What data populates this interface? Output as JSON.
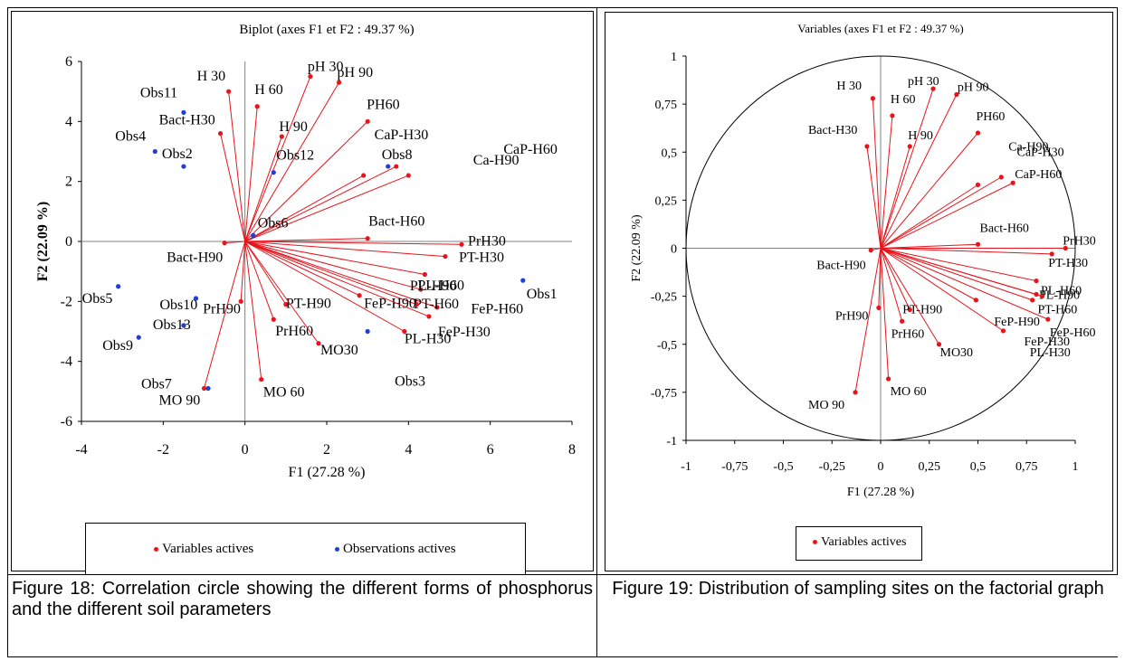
{
  "colors": {
    "variable": "#e8141b",
    "observation": "#1f3fd6",
    "axis": "#000000",
    "origin_line": "#808080"
  },
  "captions": {
    "left": "Figure 18: Correlation circle showing the different forms of phosphorus and the different soil parameters",
    "right": "Figure 19: Distribution of sampling sites on the factorial graph"
  },
  "chart_data": [
    {
      "type": "scatter",
      "subtype": "biplot",
      "title": "Biplot (axes F1 et F2 : 49.37 %)",
      "xlabel": "F1 (27.28 %)",
      "ylabel": "F2 (22.09 %)",
      "xlim": [
        -4,
        8
      ],
      "ylim": [
        -6,
        6
      ],
      "xticks": [
        "-4",
        "-2",
        "0",
        "2",
        "4",
        "6",
        "8"
      ],
      "yticks": [
        "-6",
        "-4",
        "-2",
        "0",
        "2",
        "4",
        "6"
      ],
      "legend": {
        "position": "bottom",
        "entries": [
          "Variables actives",
          "Observations actives"
        ]
      },
      "series": [
        {
          "name": "Variables actives",
          "points": [
            {
              "label": "H 30",
              "x": -0.4,
              "y": 5.0
            },
            {
              "label": "pH 30",
              "x": 1.6,
              "y": 5.5
            },
            {
              "label": "pH 90",
              "x": 2.3,
              "y": 5.3
            },
            {
              "label": "H 60",
              "x": 0.3,
              "y": 4.5
            },
            {
              "label": "Bact-H30",
              "x": -0.6,
              "y": 3.6
            },
            {
              "label": "H 90",
              "x": 0.9,
              "y": 3.5
            },
            {
              "label": "PH60",
              "x": 3.0,
              "y": 4.0
            },
            {
              "label": "Ca-H90",
              "x": 3.7,
              "y": 2.5
            },
            {
              "label": "CaP-H60",
              "x": 4.0,
              "y": 2.2
            },
            {
              "label": "CaP-H30",
              "x": 2.9,
              "y": 2.2
            },
            {
              "label": "Bact-H60",
              "x": 3.0,
              "y": 0.1
            },
            {
              "label": "PrH30",
              "x": 5.3,
              "y": -0.1
            },
            {
              "label": "PT-H30",
              "x": 4.9,
              "y": -0.5
            },
            {
              "label": "PL-H60",
              "x": 4.4,
              "y": -1.1
            },
            {
              "label": "PL-H90",
              "x": 4.3,
              "y": -1.6
            },
            {
              "label": "PT-H60",
              "x": 4.7,
              "y": -2.2
            },
            {
              "label": "FeP-H60",
              "x": 4.2,
              "y": -2.1
            },
            {
              "label": "FeP-H90",
              "x": 2.8,
              "y": -1.8
            },
            {
              "label": "FeP-H30",
              "x": 4.5,
              "y": -2.5
            },
            {
              "label": "PL-H30",
              "x": 3.9,
              "y": -3.0
            },
            {
              "label": "Bact-H90",
              "x": -0.5,
              "y": -0.05
            },
            {
              "label": "PT-H90",
              "x": 1.0,
              "y": -2.1
            },
            {
              "label": "PrH60",
              "x": 0.7,
              "y": -2.6
            },
            {
              "label": "MO30",
              "x": 1.8,
              "y": -3.4
            },
            {
              "label": "PrH90",
              "x": -0.1,
              "y": -2.0
            },
            {
              "label": "MO 60",
              "x": 0.4,
              "y": -4.6
            },
            {
              "label": "MO 90",
              "x": -1.0,
              "y": -4.9
            }
          ]
        },
        {
          "name": "Observations actives",
          "points": [
            {
              "label": "Obs11",
              "x": -1.5,
              "y": 4.3
            },
            {
              "label": "Obs4",
              "x": -2.2,
              "y": 3.0
            },
            {
              "label": "Obs2",
              "x": -1.5,
              "y": 2.5
            },
            {
              "label": "Obs12",
              "x": 0.7,
              "y": 2.3
            },
            {
              "label": "Obs8",
              "x": 3.5,
              "y": 2.5
            },
            {
              "label": "Obs6",
              "x": 0.2,
              "y": 0.2
            },
            {
              "label": "Obs1",
              "x": 6.8,
              "y": -1.3
            },
            {
              "label": "Obs5",
              "x": -3.1,
              "y": -1.5
            },
            {
              "label": "Obs10",
              "x": -1.2,
              "y": -1.9
            },
            {
              "label": "Obs13",
              "x": -1.5,
              "y": -2.8
            },
            {
              "label": "Obs9",
              "x": -2.6,
              "y": -3.2
            },
            {
              "label": "Obs7",
              "x": -0.9,
              "y": -4.9
            },
            {
              "label": "Obs3",
              "x": 3.0,
              "y": -3.0
            }
          ]
        }
      ]
    },
    {
      "type": "scatter",
      "subtype": "correlation-circle",
      "title": "Variables (axes F1 et F2 : 49.37 %)",
      "xlabel": "F1 (27.28 %)",
      "ylabel": "F2 (22.09 %)",
      "xlim": [
        -1,
        1
      ],
      "ylim": [
        -1,
        1
      ],
      "xticks": [
        "-1",
        "-0,75",
        "-0,5",
        "-0,25",
        "0",
        "0,25",
        "0,5",
        "0,75",
        "1"
      ],
      "yticks": [
        "-1",
        "-0,75",
        "-0,5",
        "-0,25",
        "0",
        "0,25",
        "0,5",
        "0,75",
        "1"
      ],
      "legend": {
        "position": "bottom",
        "entries": [
          "Variables actives"
        ]
      },
      "series": [
        {
          "name": "Variables actives",
          "points": [
            {
              "label": "H 30",
              "x": -0.04,
              "y": 0.78
            },
            {
              "label": "pH 30",
              "x": 0.27,
              "y": 0.83
            },
            {
              "label": "pH 90",
              "x": 0.39,
              "y": 0.8
            },
            {
              "label": "H 60",
              "x": 0.06,
              "y": 0.69
            },
            {
              "label": "Bact-H30",
              "x": -0.07,
              "y": 0.53
            },
            {
              "label": "H 90",
              "x": 0.15,
              "y": 0.53
            },
            {
              "label": "PH60",
              "x": 0.5,
              "y": 0.6
            },
            {
              "label": "Ca-H90",
              "x": 0.68,
              "y": 0.34
            },
            {
              "label": "CaP-H60",
              "x": 0.62,
              "y": 0.37
            },
            {
              "label": "CaP-H30",
              "x": 0.5,
              "y": 0.33
            },
            {
              "label": "Bact-H60",
              "x": 0.5,
              "y": 0.02
            },
            {
              "label": "PrH30",
              "x": 0.95,
              "y": 0.0
            },
            {
              "label": "PT-H30",
              "x": 0.88,
              "y": -0.03
            },
            {
              "label": "PL-H60",
              "x": 0.8,
              "y": -0.17
            },
            {
              "label": "PL-H90",
              "x": 0.8,
              "y": -0.24
            },
            {
              "label": "PT-H60",
              "x": 0.83,
              "y": -0.25
            },
            {
              "label": "FeP-H60",
              "x": 0.86,
              "y": -0.37
            },
            {
              "label": "FeP-H30",
              "x": 0.63,
              "y": -0.43
            },
            {
              "label": "FeP-H90",
              "x": 0.49,
              "y": -0.27
            },
            {
              "label": "PL-H30",
              "x": 0.78,
              "y": -0.27
            },
            {
              "label": "Bact-H90",
              "x": -0.05,
              "y": -0.01
            },
            {
              "label": "PT-H90",
              "x": 0.15,
              "y": -0.32
            },
            {
              "label": "PrH60",
              "x": 0.11,
              "y": -0.38
            },
            {
              "label": "MO30",
              "x": 0.3,
              "y": -0.5
            },
            {
              "label": "PrH90",
              "x": -0.01,
              "y": -0.31
            },
            {
              "label": "MO 60",
              "x": 0.04,
              "y": -0.68
            },
            {
              "label": "MO 90",
              "x": -0.13,
              "y": -0.75
            }
          ]
        }
      ]
    }
  ]
}
